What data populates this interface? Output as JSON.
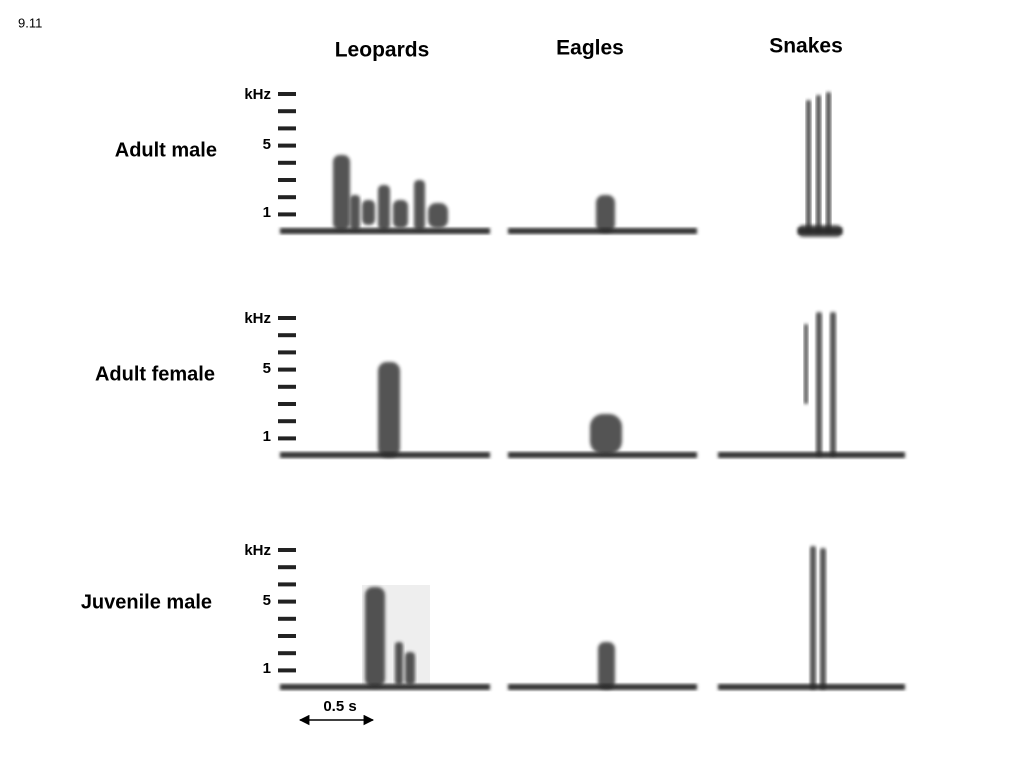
{
  "figure_number": "9.11",
  "columns": [
    "Leopards",
    "Eagles",
    "Snakes"
  ],
  "rows": [
    {
      "label": "Adult male",
      "axis": [
        "kHz",
        "5",
        "1"
      ]
    },
    {
      "label": "Adult female",
      "axis": [
        "kHz",
        "5",
        "1"
      ]
    },
    {
      "label": "Juvenile male",
      "axis": [
        "kHz",
        "5",
        "1"
      ]
    }
  ],
  "scale_bar": "0.5 s"
}
